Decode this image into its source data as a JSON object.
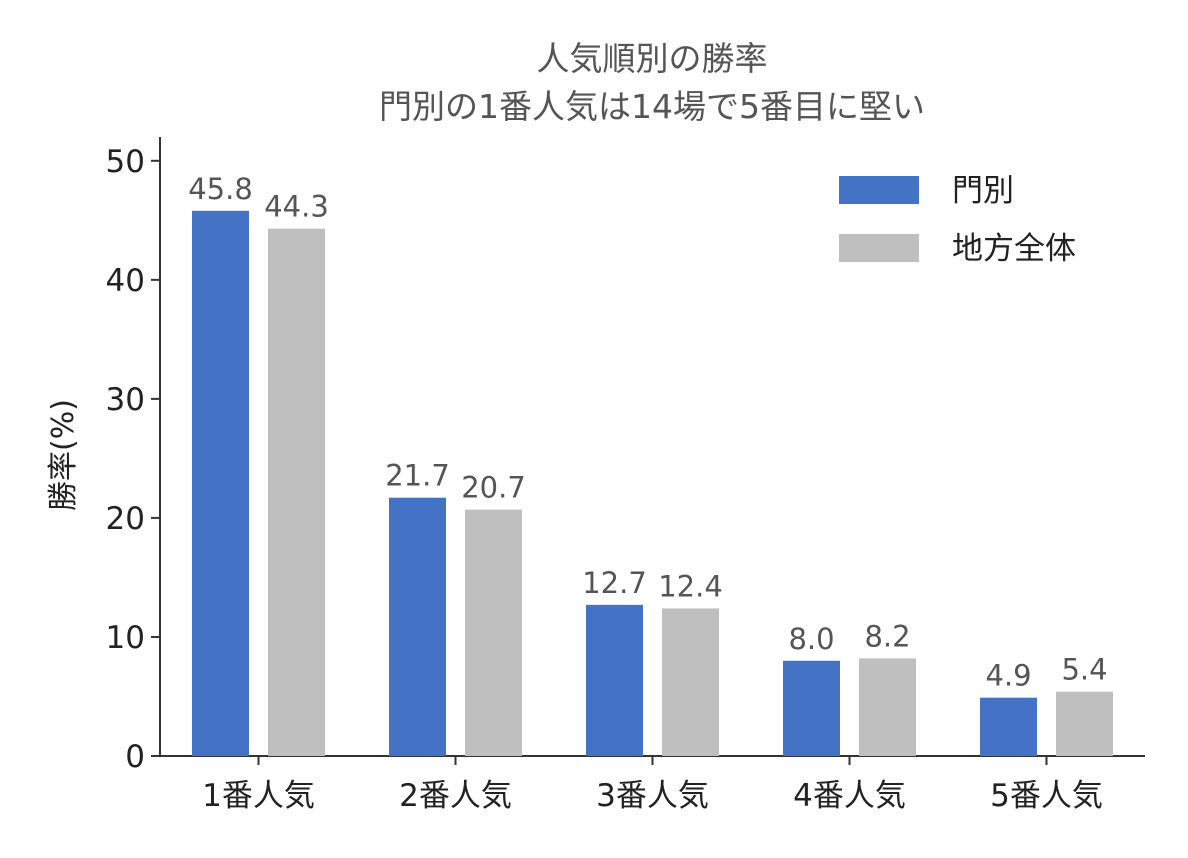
{
  "chart_data": {
    "type": "bar",
    "title": "人気順別の勝率",
    "subtitle": "門別の1番人気は14場で5番目に堅い",
    "xlabel": "",
    "ylabel": "勝率(%)",
    "ylim": [
      0,
      52
    ],
    "yticks": [
      0,
      10,
      20,
      30,
      40,
      50
    ],
    "grid": false,
    "legend_position": "top-right",
    "categories": [
      "1番人気",
      "2番人気",
      "3番人気",
      "4番人気",
      "5番人気"
    ],
    "series": [
      {
        "name": "門別",
        "color": "#4472c4",
        "values": [
          45.8,
          21.7,
          12.7,
          8.0,
          4.9
        ],
        "labels": [
          "45.8",
          "21.7",
          "12.7",
          "8.0",
          "4.9"
        ]
      },
      {
        "name": "地方全体",
        "color": "#bfbfbf",
        "values": [
          44.3,
          20.7,
          12.4,
          8.2,
          5.4
        ],
        "labels": [
          "44.3",
          "20.7",
          "12.4",
          "8.2",
          "5.4"
        ]
      }
    ]
  }
}
